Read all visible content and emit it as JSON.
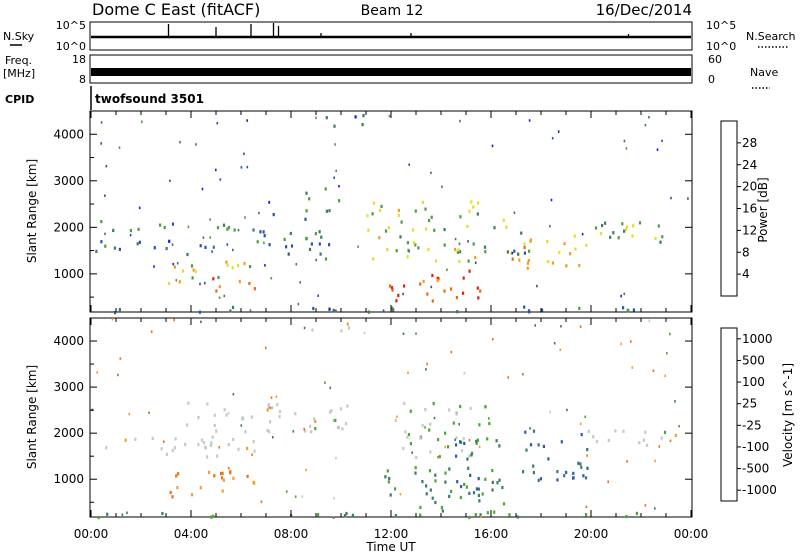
{
  "header": {
    "title": "Dome C East (fitACF)",
    "beam": "Beam 12",
    "date": "16/Dec/2014"
  },
  "top_panels": {
    "nsky": {
      "label": "N.Sky",
      "y_ticks": [
        "10^5",
        "10^0"
      ],
      "right_label": "N.Search",
      "right_ticks": [
        "10^5",
        "10^0"
      ]
    },
    "freq": {
      "label_line1": "Freq.",
      "label_line2": "[MHz]",
      "y_ticks": [
        "18",
        "8"
      ],
      "right_label": "Nave",
      "right_ticks": [
        "60",
        "0"
      ]
    },
    "cpid": {
      "label": "CPID",
      "value": "twofsound 3501"
    }
  },
  "chart_data": [
    {
      "type": "heatmap",
      "name": "power",
      "ylabel": "Slant Range [km]",
      "ylim": [
        180,
        4500
      ],
      "xlim": [
        "00:00",
        "24:00"
      ],
      "y_ticks": [
        1000,
        2000,
        3000,
        4000
      ],
      "colorbar": {
        "label": "Power [dB]",
        "ticks": [
          4,
          8,
          12,
          16,
          20,
          24,
          28
        ],
        "colors": [
          "#1b1bd6",
          "#2b54a8",
          "#3f7a60",
          "#4d9e3c",
          "#e6dd2a",
          "#f0a020",
          "#ee6a10",
          "#e02010"
        ]
      },
      "scatter_regions": [
        {
          "t0": 0.0,
          "t1": 5.5,
          "r0": 1450,
          "r1": 1750,
          "v": 8
        },
        {
          "t0": 0.3,
          "t1": 6.5,
          "r0": 1950,
          "r1": 2200,
          "v": 12
        },
        {
          "t0": 3.0,
          "t1": 6.5,
          "r0": 750,
          "r1": 1300,
          "v": 18
        },
        {
          "t0": 4.8,
          "t1": 6.6,
          "r0": 650,
          "r1": 950,
          "v": 28
        },
        {
          "t0": 6.5,
          "t1": 9.5,
          "r0": 1350,
          "r1": 2400,
          "v": 10
        },
        {
          "t0": 8.5,
          "t1": 10.0,
          "r0": 2600,
          "r1": 2900,
          "v": 12
        },
        {
          "t0": 11.0,
          "t1": 15.5,
          "r0": 1300,
          "r1": 2600,
          "v": 16
        },
        {
          "t0": 11.8,
          "t1": 15.8,
          "r0": 400,
          "r1": 1100,
          "v": 28
        },
        {
          "t0": 15.5,
          "t1": 17.5,
          "r0": 1400,
          "r1": 2200,
          "v": 12
        },
        {
          "t0": 16.8,
          "t1": 19.8,
          "r0": 1100,
          "r1": 1900,
          "v": 22
        },
        {
          "t0": 20.0,
          "t1": 23.5,
          "r0": 1700,
          "r1": 2300,
          "v": 14
        },
        {
          "t0": 8.6,
          "t1": 11.2,
          "r0": 4200,
          "r1": 4450,
          "v": 6
        },
        {
          "t0": 0.0,
          "t1": 24.0,
          "r0": 200,
          "r1": 320,
          "v": 8
        }
      ]
    },
    {
      "type": "heatmap",
      "name": "velocity",
      "ylabel": "Slant Range [km]",
      "xlabel": "Time UT",
      "ylim": [
        180,
        4500
      ],
      "xlim": [
        "00:00",
        "24:00"
      ],
      "x_ticks": [
        "00:00",
        "04:00",
        "08:00",
        "12:00",
        "16:00",
        "20:00",
        "00:00"
      ],
      "y_ticks": [
        1000,
        2000,
        3000,
        4000
      ],
      "colorbar": {
        "label": "Velocity [m s^-1]",
        "ticks": [
          "1000",
          "500",
          "100",
          "25",
          "-25",
          "-100",
          "-500",
          "-1000"
        ],
        "colors": [
          "#1a2fc8",
          "#2a5fa8",
          "#3c7a6a",
          "#48a832",
          "#c8c8c8",
          "#f0a030",
          "#ee7010",
          "#d02010"
        ]
      },
      "scatter_regions": [
        {
          "t0": 0.0,
          "t1": 7.0,
          "r0": 1500,
          "r1": 1950,
          "v": 0
        },
        {
          "t0": 3.5,
          "t1": 10.5,
          "r0": 2000,
          "r1": 2700,
          "v": 0
        },
        {
          "t0": 3.0,
          "t1": 6.5,
          "r0": 500,
          "r1": 1200,
          "v": -100
        },
        {
          "t0": 11.5,
          "t1": 16.5,
          "r0": 300,
          "r1": 1300,
          "v": 100
        },
        {
          "t0": 12.0,
          "t1": 16.0,
          "r0": 1500,
          "r1": 2700,
          "v": 25
        },
        {
          "t0": 14.5,
          "t1": 16.3,
          "r0": 800,
          "r1": 1900,
          "v": 500
        },
        {
          "t0": 17.0,
          "t1": 20.0,
          "r0": 1000,
          "r1": 2100,
          "v": 500
        },
        {
          "t0": 19.5,
          "t1": 23.5,
          "r0": 1700,
          "r1": 2100,
          "v": 0
        },
        {
          "t0": 0.0,
          "t1": 24.0,
          "r0": 200,
          "r1": 300,
          "v": 100
        },
        {
          "t0": 8.6,
          "t1": 11.2,
          "r0": 4250,
          "r1": 4450,
          "v": 0
        }
      ]
    }
  ]
}
